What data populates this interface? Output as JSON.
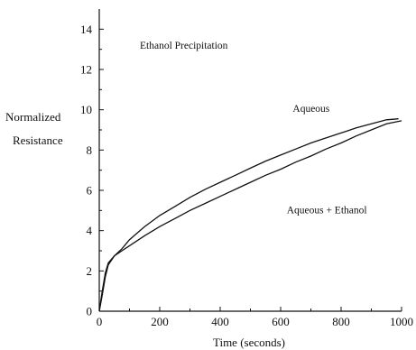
{
  "chart_data": {
    "type": "line",
    "title": "Ethanol Precipitation",
    "xlabel": "Time (seconds)",
    "ylabel": [
      "Normalized",
      "Resistance"
    ],
    "xlim": [
      0,
      1000
    ],
    "ylim": [
      0,
      15
    ],
    "x_ticks": [
      0,
      200,
      400,
      600,
      800,
      1000
    ],
    "x_tick_labels": [
      "0",
      "200",
      "400",
      "600",
      "800",
      "1000"
    ],
    "y_ticks": [
      0,
      2,
      4,
      6,
      8,
      10,
      12,
      14
    ],
    "y_tick_labels": [
      "0",
      "2",
      "4",
      "6",
      "8",
      "10",
      "12",
      "14"
    ],
    "grid": false,
    "series": [
      {
        "name": "Aqueous",
        "x": [
          0,
          10,
          20,
          30,
          50,
          75,
          100,
          150,
          200,
          250,
          300,
          350,
          400,
          450,
          500,
          550,
          600,
          650,
          700,
          750,
          800,
          850,
          900,
          950,
          990
        ],
        "y": [
          0,
          0.8,
          1.7,
          2.3,
          2.75,
          3.1,
          3.55,
          4.2,
          4.75,
          5.2,
          5.65,
          6.05,
          6.4,
          6.75,
          7.1,
          7.45,
          7.75,
          8.05,
          8.35,
          8.6,
          8.85,
          9.1,
          9.3,
          9.5,
          9.55
        ]
      },
      {
        "name": "Aqueous + Ethanol",
        "x": [
          0,
          10,
          20,
          30,
          50,
          75,
          100,
          150,
          200,
          250,
          300,
          350,
          400,
          450,
          500,
          550,
          600,
          650,
          700,
          750,
          800,
          850,
          900,
          950,
          1000
        ],
        "y": [
          0,
          1.0,
          1.9,
          2.4,
          2.75,
          3.0,
          3.25,
          3.75,
          4.2,
          4.6,
          5.0,
          5.35,
          5.7,
          6.05,
          6.4,
          6.75,
          7.05,
          7.4,
          7.7,
          8.05,
          8.35,
          8.7,
          9.0,
          9.3,
          9.45
        ]
      }
    ],
    "annotations": [
      {
        "text": "Aqueous",
        "x": 640,
        "y": 9.9
      },
      {
        "text": "Aqueous + Ethanol",
        "x": 620,
        "y": 4.85
      }
    ]
  }
}
